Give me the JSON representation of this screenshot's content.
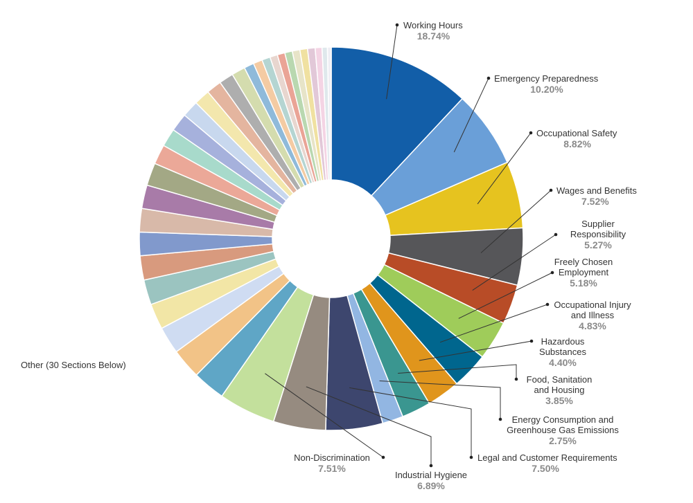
{
  "chart_data": {
    "type": "pie",
    "style": "donut",
    "other_label": "Other (30 Sections Below)",
    "categories": [
      {
        "label": [
          "Working Hours"
        ],
        "pct": "18.74%",
        "value": 18.74,
        "color": "#125ea8"
      },
      {
        "label": [
          "Emergency  Preparedness"
        ],
        "pct": "10.20%",
        "value": 10.2,
        "color": "#6a9fd8"
      },
      {
        "label": [
          "Occupational Safety"
        ],
        "pct": "8.82%",
        "value": 8.82,
        "color": "#e6c31f"
      },
      {
        "label": [
          "Wages and Benefits"
        ],
        "pct": "7.52%",
        "value": 7.52,
        "color": "#565659"
      },
      {
        "label": [
          "Supplier",
          "Responsibility"
        ],
        "pct": "5.27%",
        "value": 5.27,
        "color": "#b84c27"
      },
      {
        "label": [
          "Freely Chosen",
          "Employment"
        ],
        "pct": "5.18%",
        "value": 5.18,
        "color": "#9fcc5a"
      },
      {
        "label": [
          "Occupational Injury",
          "and Illness"
        ],
        "pct": "4.83%",
        "value": 4.83,
        "color": "#00668e"
      },
      {
        "label": [
          "Hazardous",
          "Substances"
        ],
        "pct": "4.40%",
        "value": 4.4,
        "color": "#e0951c"
      },
      {
        "label": [
          "Food, Sanitation",
          "and Housing"
        ],
        "pct": "3.85%",
        "value": 3.85,
        "color": "#3a9690"
      },
      {
        "label": [
          "Energy Consumption and",
          "Greenhouse Gas Emissions"
        ],
        "pct": "2.75%",
        "value": 2.75,
        "color": "#92b6e2"
      },
      {
        "label": [
          "Legal and Customer Requirements"
        ],
        "pct": "7.50%",
        "value": 7.5,
        "color": "#3d466e"
      },
      {
        "label": [
          "Industrial Hygiene"
        ],
        "pct": "6.89%",
        "value": 6.89,
        "color": "#968b80"
      },
      {
        "label": [
          "Non-Discrimination"
        ],
        "pct": "7.51%",
        "value": 7.51,
        "color": "#c3e09c"
      }
    ],
    "other_colors": [
      "#5fa6c6",
      "#f2c387",
      "#cfdcf2",
      "#f2e6a6",
      "#9bc4c0",
      "#d89a7e",
      "#8199cc",
      "#d8b9a9",
      "#a87ba8",
      "#a3a885",
      "#eba898",
      "#a8dacb",
      "#a6b1dc",
      "#c8d8ee",
      "#f3e7ad",
      "#e4b59f",
      "#aeaeae",
      "#d4dcae",
      "#8fbada",
      "#f4cba3",
      "#b5d5d2",
      "#e8d6cf",
      "#eaa496",
      "#b9d8b0",
      "#e7e4c8",
      "#f0e1a1",
      "#e2c8d8",
      "#f4d4e4",
      "#dfe8ec",
      "#efeef4"
    ],
    "other_values": [
      4.3,
      4.0,
      3.6,
      3.4,
      3.3,
      3.2,
      3.1,
      3.1,
      3.1,
      3.0,
      2.6,
      2.4,
      2.4,
      2.2,
      2.1,
      2.0,
      1.9,
      1.8,
      1.3,
      1.2,
      1.1,
      1.0,
      1.0,
      1.0,
      1.0,
      1.0,
      1.0,
      0.9,
      0.7,
      0.5
    ]
  }
}
